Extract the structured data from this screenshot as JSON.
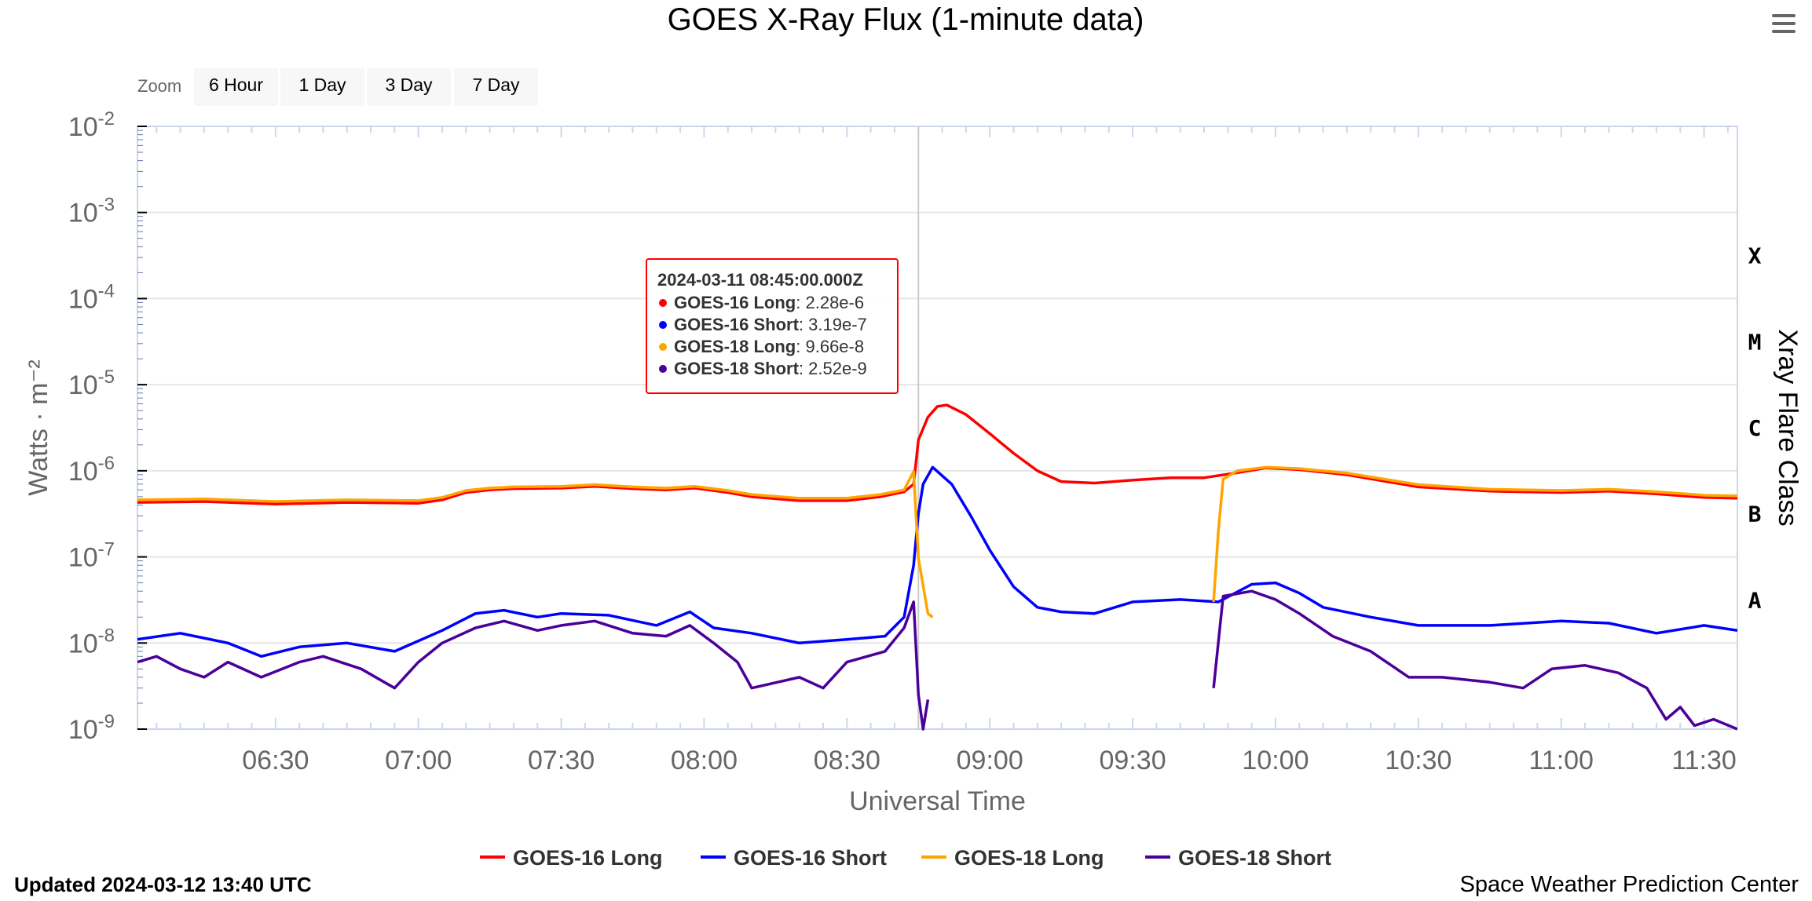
{
  "title": "GOES X-Ray Flux (1-minute data)",
  "menu_icon": "hamburger-menu-icon",
  "zoom": {
    "label": "Zoom",
    "buttons": [
      "6 Hour",
      "1 Day",
      "3 Day",
      "7 Day"
    ]
  },
  "footer": {
    "updated": "Updated 2024-03-12 13:40 UTC",
    "credit": "Space Weather Prediction Center"
  },
  "chart_data": {
    "type": "line",
    "title": "GOES X-Ray Flux (1-minute data)",
    "xlabel": "Universal Time",
    "ylabel": "Watts · m⁻²",
    "y2label": "Xray Flare Class",
    "yscale": "log",
    "xlim": [
      "06:01",
      "11:37"
    ],
    "ylim": [
      1e-09,
      0.01
    ],
    "xticks": [
      "06:30",
      "07:00",
      "07:30",
      "08:00",
      "08:30",
      "09:00",
      "09:30",
      "10:00",
      "10:30",
      "11:00",
      "11:30"
    ],
    "yticks": [
      {
        "base": "10",
        "exp": "-2",
        "value": 0.01
      },
      {
        "base": "10",
        "exp": "-3",
        "value": 0.001
      },
      {
        "base": "10",
        "exp": "-4",
        "value": 0.0001
      },
      {
        "base": "10",
        "exp": "-5",
        "value": 1e-05
      },
      {
        "base": "10",
        "exp": "-6",
        "value": 1e-06
      },
      {
        "base": "10",
        "exp": "-7",
        "value": 1e-07
      },
      {
        "base": "10",
        "exp": "-8",
        "value": 1e-08
      },
      {
        "base": "10",
        "exp": "-9",
        "value": 1e-09
      }
    ],
    "flare_classes": [
      {
        "label": "X",
        "value": 0.0001
      },
      {
        "label": "M",
        "value": 1e-05
      },
      {
        "label": "C",
        "value": 1e-06
      },
      {
        "label": "B",
        "value": 1e-07
      },
      {
        "label": "A",
        "value": 1e-08
      }
    ],
    "grid": true,
    "legend": "bottom-center",
    "crosshair_x": "08:45",
    "tooltip": {
      "header": "2024-03-11 08:45:00.000Z",
      "rows": [
        {
          "name": "GOES-16 Long",
          "value": "2.28e-6",
          "color": "#ff0000"
        },
        {
          "name": "GOES-16 Short",
          "value": "3.19e-7",
          "color": "#0000ff"
        },
        {
          "name": "GOES-18 Long",
          "value": "9.66e-8",
          "color": "#ffa500"
        },
        {
          "name": "GOES-18 Short",
          "value": "2.52e-9",
          "color": "#4b0099"
        }
      ]
    },
    "series": [
      {
        "name": "GOES-16 Long",
        "color": "#ff0000",
        "points": [
          [
            "06:01",
            4.3e-07
          ],
          [
            "06:15",
            4.4e-07
          ],
          [
            "06:30",
            4.1e-07
          ],
          [
            "06:45",
            4.3e-07
          ],
          [
            "07:00",
            4.2e-07
          ],
          [
            "07:05",
            4.6e-07
          ],
          [
            "07:10",
            5.6e-07
          ],
          [
            "07:15",
            6e-07
          ],
          [
            "07:20",
            6.2e-07
          ],
          [
            "07:30",
            6.3e-07
          ],
          [
            "07:37",
            6.6e-07
          ],
          [
            "07:45",
            6.2e-07
          ],
          [
            "07:52",
            6e-07
          ],
          [
            "07:58",
            6.3e-07
          ],
          [
            "08:05",
            5.6e-07
          ],
          [
            "08:10",
            5e-07
          ],
          [
            "08:20",
            4.5e-07
          ],
          [
            "08:30",
            4.5e-07
          ],
          [
            "08:37",
            5e-07
          ],
          [
            "08:42",
            5.7e-07
          ],
          [
            "08:44",
            7e-07
          ],
          [
            "08:45",
            2.28e-06
          ],
          [
            "08:47",
            4.2e-06
          ],
          [
            "08:49",
            5.6e-06
          ],
          [
            "08:51",
            5.8e-06
          ],
          [
            "08:55",
            4.5e-06
          ],
          [
            "09:00",
            2.7e-06
          ],
          [
            "09:05",
            1.6e-06
          ],
          [
            "09:10",
            1e-06
          ],
          [
            "09:15",
            7.5e-07
          ],
          [
            "09:22",
            7.2e-07
          ],
          [
            "09:30",
            7.8e-07
          ],
          [
            "09:38",
            8.3e-07
          ],
          [
            "09:45",
            8.3e-07
          ],
          [
            "09:52",
            9.5e-07
          ],
          [
            "09:58",
            1.08e-06
          ],
          [
            "10:05",
            1.03e-06
          ],
          [
            "10:15",
            9e-07
          ],
          [
            "10:30",
            6.5e-07
          ],
          [
            "10:45",
            5.8e-07
          ],
          [
            "11:00",
            5.6e-07
          ],
          [
            "11:10",
            5.8e-07
          ],
          [
            "11:20",
            5.4e-07
          ],
          [
            "11:30",
            4.9e-07
          ],
          [
            "11:37",
            4.8e-07
          ]
        ]
      },
      {
        "name": "GOES-16 Short",
        "color": "#0000ff",
        "points": [
          [
            "06:01",
            1.1e-08
          ],
          [
            "06:10",
            1.3e-08
          ],
          [
            "06:20",
            1e-08
          ],
          [
            "06:27",
            7e-09
          ],
          [
            "06:35",
            9e-09
          ],
          [
            "06:45",
            1e-08
          ],
          [
            "06:55",
            8e-09
          ],
          [
            "07:05",
            1.4e-08
          ],
          [
            "07:12",
            2.2e-08
          ],
          [
            "07:18",
            2.4e-08
          ],
          [
            "07:25",
            2e-08
          ],
          [
            "07:30",
            2.2e-08
          ],
          [
            "07:40",
            2.1e-08
          ],
          [
            "07:50",
            1.6e-08
          ],
          [
            "07:57",
            2.3e-08
          ],
          [
            "08:02",
            1.5e-08
          ],
          [
            "08:10",
            1.3e-08
          ],
          [
            "08:20",
            1e-08
          ],
          [
            "08:30",
            1.1e-08
          ],
          [
            "08:38",
            1.2e-08
          ],
          [
            "08:42",
            2e-08
          ],
          [
            "08:44",
            8e-08
          ],
          [
            "08:45",
            3.19e-07
          ],
          [
            "08:46",
            7e-07
          ],
          [
            "08:48",
            1.1e-06
          ],
          [
            "08:52",
            7e-07
          ],
          [
            "08:56",
            3e-07
          ],
          [
            "09:00",
            1.2e-07
          ],
          [
            "09:05",
            4.5e-08
          ],
          [
            "09:10",
            2.6e-08
          ],
          [
            "09:15",
            2.3e-08
          ],
          [
            "09:22",
            2.2e-08
          ],
          [
            "09:30",
            3e-08
          ],
          [
            "09:40",
            3.2e-08
          ],
          [
            "09:48",
            3e-08
          ],
          [
            "09:55",
            4.8e-08
          ],
          [
            "10:00",
            5e-08
          ],
          [
            "10:05",
            3.8e-08
          ],
          [
            "10:10",
            2.6e-08
          ],
          [
            "10:20",
            2e-08
          ],
          [
            "10:30",
            1.6e-08
          ],
          [
            "10:45",
            1.6e-08
          ],
          [
            "11:00",
            1.8e-08
          ],
          [
            "11:10",
            1.7e-08
          ],
          [
            "11:20",
            1.3e-08
          ],
          [
            "11:30",
            1.6e-08
          ],
          [
            "11:37",
            1.4e-08
          ]
        ]
      },
      {
        "name": "GOES-18 Long",
        "color": "#ffa500",
        "points": [
          [
            "06:01",
            4.6e-07
          ],
          [
            "06:15",
            4.7e-07
          ],
          [
            "06:30",
            4.4e-07
          ],
          [
            "06:45",
            4.6e-07
          ],
          [
            "07:00",
            4.5e-07
          ],
          [
            "07:05",
            4.9e-07
          ],
          [
            "07:10",
            5.9e-07
          ],
          [
            "07:15",
            6.3e-07
          ],
          [
            "07:20",
            6.5e-07
          ],
          [
            "07:30",
            6.6e-07
          ],
          [
            "07:37",
            6.9e-07
          ],
          [
            "07:45",
            6.5e-07
          ],
          [
            "07:52",
            6.3e-07
          ],
          [
            "07:58",
            6.6e-07
          ],
          [
            "08:05",
            5.9e-07
          ],
          [
            "08:10",
            5.3e-07
          ],
          [
            "08:20",
            4.8e-07
          ],
          [
            "08:30",
            4.8e-07
          ],
          [
            "08:37",
            5.3e-07
          ],
          [
            "08:42",
            6e-07
          ],
          [
            "08:44",
            9.8e-07
          ],
          [
            "08:45",
            9.66e-08
          ],
          [
            "08:47",
            2.2e-08
          ],
          [
            "08:48",
            2e-08
          ],
          null,
          [
            "09:47",
            3e-08
          ],
          [
            "09:48",
            2e-07
          ],
          [
            "09:49",
            8e-07
          ],
          [
            "09:52",
            1e-06
          ],
          [
            "09:58",
            1.1e-06
          ],
          [
            "10:05",
            1.06e-06
          ],
          [
            "10:15",
            9.4e-07
          ],
          [
            "10:30",
            6.9e-07
          ],
          [
            "10:45",
            6.1e-07
          ],
          [
            "11:00",
            5.9e-07
          ],
          [
            "11:10",
            6.1e-07
          ],
          [
            "11:20",
            5.7e-07
          ],
          [
            "11:30",
            5.2e-07
          ],
          [
            "11:37",
            5.1e-07
          ]
        ]
      },
      {
        "name": "GOES-18 Short",
        "color": "#4b0099",
        "points": [
          [
            "06:01",
            6e-09
          ],
          [
            "06:05",
            7e-09
          ],
          [
            "06:10",
            5e-09
          ],
          [
            "06:15",
            4e-09
          ],
          [
            "06:20",
            6e-09
          ],
          [
            "06:27",
            4e-09
          ],
          [
            "06:35",
            6e-09
          ],
          [
            "06:40",
            7e-09
          ],
          [
            "06:48",
            5e-09
          ],
          [
            "06:55",
            3e-09
          ],
          [
            "07:00",
            6e-09
          ],
          [
            "07:05",
            1e-08
          ],
          [
            "07:12",
            1.5e-08
          ],
          [
            "07:18",
            1.8e-08
          ],
          [
            "07:25",
            1.4e-08
          ],
          [
            "07:30",
            1.6e-08
          ],
          [
            "07:37",
            1.8e-08
          ],
          [
            "07:45",
            1.3e-08
          ],
          [
            "07:52",
            1.2e-08
          ],
          [
            "07:57",
            1.6e-08
          ],
          [
            "08:02",
            1e-08
          ],
          [
            "08:07",
            6e-09
          ],
          [
            "08:10",
            3e-09
          ],
          [
            "08:20",
            4e-09
          ],
          [
            "08:25",
            3e-09
          ],
          [
            "08:30",
            6e-09
          ],
          [
            "08:38",
            8e-09
          ],
          [
            "08:42",
            1.5e-08
          ],
          [
            "08:44",
            3e-08
          ],
          [
            "08:45",
            2.52e-09
          ],
          [
            "08:46",
            1e-09
          ],
          [
            "08:47",
            2.2e-09
          ],
          null,
          [
            "09:47",
            3e-09
          ],
          [
            "09:49",
            3.5e-08
          ],
          [
            "09:55",
            4e-08
          ],
          [
            "10:00",
            3.2e-08
          ],
          [
            "10:05",
            2.2e-08
          ],
          [
            "10:12",
            1.2e-08
          ],
          [
            "10:20",
            8e-09
          ],
          [
            "10:28",
            4e-09
          ],
          [
            "10:35",
            4e-09
          ],
          [
            "10:45",
            3.5e-09
          ],
          [
            "10:52",
            3e-09
          ],
          [
            "10:58",
            5e-09
          ],
          [
            "11:05",
            5.5e-09
          ],
          [
            "11:12",
            4.5e-09
          ],
          [
            "11:18",
            3e-09
          ],
          [
            "11:22",
            1.3e-09
          ],
          [
            "11:25",
            1.8e-09
          ],
          [
            "11:28",
            1.1e-09
          ],
          [
            "11:32",
            1.3e-09
          ],
          [
            "11:37",
            1e-09
          ]
        ]
      }
    ]
  }
}
